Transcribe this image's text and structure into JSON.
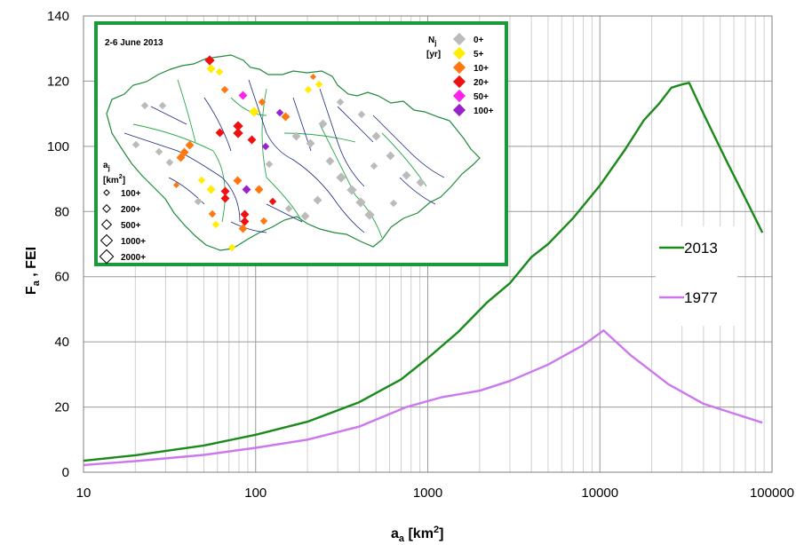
{
  "chart_data": {
    "type": "line",
    "xlabel": "a",
    "xlabel_sub": "a",
    "xlabel_unit": " [km",
    "xlabel_unit_sup": "2",
    "xlabel_unit_close": "]",
    "ylabel": "F",
    "ylabel_sub": "a",
    "ylabel_rest": " , FEI",
    "x_scale": "log",
    "xlim": [
      10,
      100000
    ],
    "ylim": [
      0,
      140
    ],
    "x_ticks": [
      "10",
      "100",
      "1000",
      "10000",
      "100000"
    ],
    "y_ticks": [
      "0",
      "20",
      "40",
      "60",
      "80",
      "100",
      "120",
      "140"
    ],
    "grid": true,
    "legend_position": "right",
    "series": [
      {
        "name": "2013",
        "color": "#1a8a1a",
        "x": [
          10,
          20,
          50,
          100,
          200,
          400,
          700,
          1000,
          1500,
          2200,
          3000,
          4000,
          5000,
          7000,
          10000,
          14000,
          18000,
          22000,
          26000,
          30000,
          33000,
          40000,
          55000,
          70000,
          88000
        ],
        "y": [
          3.5,
          5.2,
          8.2,
          11.5,
          15.5,
          21.5,
          28.5,
          35,
          43,
          52,
          58,
          66,
          70,
          78,
          88,
          99,
          108,
          113,
          118,
          119,
          119.5,
          110,
          95,
          84,
          73.5
        ]
      },
      {
        "name": "1977",
        "color": "#cc77ee",
        "x": [
          10,
          20,
          50,
          100,
          200,
          400,
          750,
          1200,
          2000,
          3000,
          5000,
          8000,
          10500,
          15000,
          25000,
          40000,
          60000,
          88000
        ],
        "y": [
          2.2,
          3.4,
          5.3,
          7.5,
          10,
          14,
          20,
          23,
          25,
          28,
          33,
          39,
          43.5,
          36,
          27,
          21,
          18,
          15.2
        ]
      }
    ],
    "inset": {
      "title": "2-6 June 2013",
      "frame_color": "#1a9a3a",
      "nj_label": "N",
      "nj_sub": "j",
      "nj_unit": "[yr]",
      "nj_legend": [
        {
          "label": "0+",
          "color": "#bbbbbb"
        },
        {
          "label": "5+",
          "color": "#ffee00"
        },
        {
          "label": "10+",
          "color": "#ff7711"
        },
        {
          "label": "20+",
          "color": "#ee1111"
        },
        {
          "label": "50+",
          "color": "#ff22ee"
        },
        {
          "label": "100+",
          "color": "#9922cc"
        }
      ],
      "aj_label": "a",
      "aj_sub": "j",
      "aj_unit": "[km",
      "aj_unit_sup": "2",
      "aj_unit_close": "]",
      "aj_legend": [
        "100+",
        "200+",
        "500+",
        "1000+",
        "2000+"
      ]
    }
  }
}
